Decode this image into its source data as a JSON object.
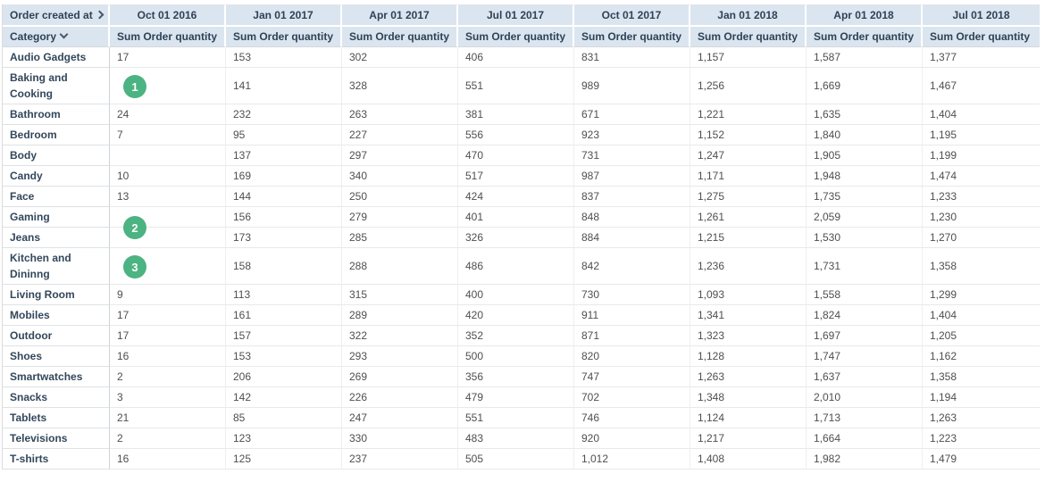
{
  "colors": {
    "header_bg": "#dbe5ef",
    "header_text": "#2e4257",
    "category_text": "#33475b",
    "value_text": "#4f4f4f",
    "badge_bg": "#4cb383",
    "badge_text": "#ffffff"
  },
  "pivot": {
    "column_field": {
      "label": "Order created at",
      "chevron_icon": "chevron-right"
    },
    "row_field": {
      "label": "Category",
      "chevron_icon": "chevron-down"
    },
    "column_headers": [
      "Oct 01 2016",
      "Jan 01 2017",
      "Apr 01 2017",
      "Jul 01 2017",
      "Oct 01 2017",
      "Jan 01 2018",
      "Apr 01 2018",
      "Jul 01 2018"
    ],
    "measure_label": "Sum Order quantity",
    "rows": [
      {
        "category": "Audio Gadgets",
        "values": [
          "17",
          "153",
          "302",
          "406",
          "831",
          "1,157",
          "1,587",
          "1,377"
        ]
      },
      {
        "category": "Baking and Cooking",
        "values": [
          "",
          "141",
          "328",
          "551",
          "989",
          "1,256",
          "1,669",
          "1,467"
        ]
      },
      {
        "category": "Bathroom",
        "values": [
          "24",
          "232",
          "263",
          "381",
          "671",
          "1,221",
          "1,635",
          "1,404"
        ]
      },
      {
        "category": "Bedroom",
        "values": [
          "7",
          "95",
          "227",
          "556",
          "923",
          "1,152",
          "1,840",
          "1,195"
        ]
      },
      {
        "category": "Body",
        "values": [
          "",
          "137",
          "297",
          "470",
          "731",
          "1,247",
          "1,905",
          "1,199"
        ]
      },
      {
        "category": "Candy",
        "values": [
          "10",
          "169",
          "340",
          "517",
          "987",
          "1,171",
          "1,948",
          "1,474"
        ]
      },
      {
        "category": "Face",
        "values": [
          "13",
          "144",
          "250",
          "424",
          "837",
          "1,275",
          "1,735",
          "1,233"
        ]
      },
      {
        "category": "Gaming",
        "values": [
          "",
          "156",
          "279",
          "401",
          "848",
          "1,261",
          "2,059",
          "1,230"
        ]
      },
      {
        "category": "Jeans",
        "values": [
          "",
          "173",
          "285",
          "326",
          "884",
          "1,215",
          "1,530",
          "1,270"
        ]
      },
      {
        "category": "Kitchen and Dininng",
        "values": [
          "",
          "158",
          "288",
          "486",
          "842",
          "1,236",
          "1,731",
          "1,358"
        ]
      },
      {
        "category": "Living Room",
        "values": [
          "9",
          "113",
          "315",
          "400",
          "730",
          "1,093",
          "1,558",
          "1,299"
        ]
      },
      {
        "category": "Mobiles",
        "values": [
          "17",
          "161",
          "289",
          "420",
          "911",
          "1,341",
          "1,824",
          "1,404"
        ]
      },
      {
        "category": "Outdoor",
        "values": [
          "17",
          "157",
          "322",
          "352",
          "871",
          "1,323",
          "1,697",
          "1,205"
        ]
      },
      {
        "category": "Shoes",
        "values": [
          "16",
          "153",
          "293",
          "500",
          "820",
          "1,128",
          "1,747",
          "1,162"
        ]
      },
      {
        "category": "Smartwatches",
        "values": [
          "2",
          "206",
          "269",
          "356",
          "747",
          "1,263",
          "1,637",
          "1,358"
        ]
      },
      {
        "category": "Snacks",
        "values": [
          "3",
          "142",
          "226",
          "479",
          "702",
          "1,348",
          "2,010",
          "1,194"
        ]
      },
      {
        "category": "Tablets",
        "values": [
          "21",
          "85",
          "247",
          "551",
          "746",
          "1,124",
          "1,713",
          "1,263"
        ]
      },
      {
        "category": "Televisions",
        "values": [
          "2",
          "123",
          "330",
          "483",
          "920",
          "1,217",
          "1,664",
          "1,223"
        ]
      },
      {
        "category": "T-shirts",
        "values": [
          "16",
          "125",
          "237",
          "505",
          "1,012",
          "1,408",
          "1,982",
          "1,479"
        ]
      }
    ],
    "annotations": [
      {
        "label": "1",
        "anchor_category": "Baking and Cooking",
        "position": "middle"
      },
      {
        "label": "2",
        "anchor_category": "Gaming",
        "position": "bottom"
      },
      {
        "label": "3",
        "anchor_category": "Kitchen and Dininng",
        "position": "middle"
      }
    ]
  }
}
